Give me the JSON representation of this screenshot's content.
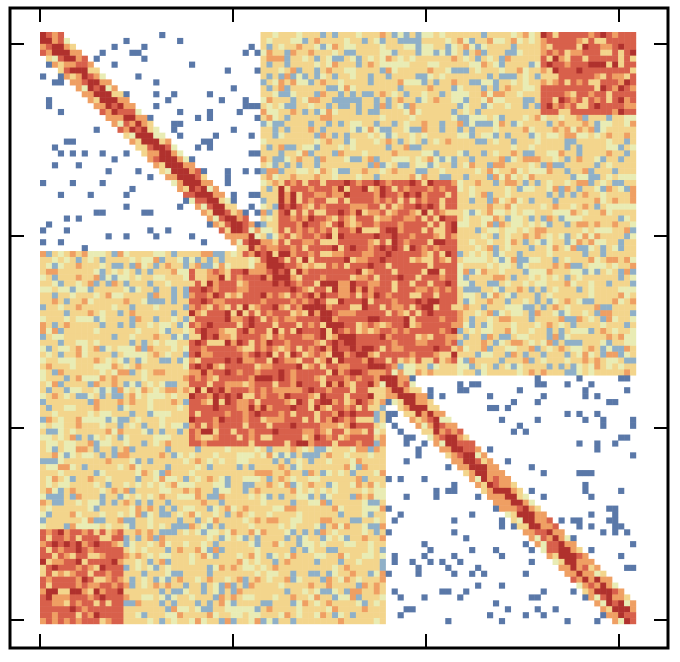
{
  "chart_data": {
    "type": "heatmap",
    "title": "",
    "xlabel": "",
    "ylabel": "",
    "description_of_matrix": null,
    "matrix_size": 100,
    "colorscale": [
      "#ffffff",
      "#5a78a8",
      "#8fb0c8",
      "#e9ecb4",
      "#f3d58c",
      "#ef9f63",
      "#d8604b",
      "#b0312d"
    ],
    "blocks": [
      {
        "name": "top-right-large",
        "rows": [
          0,
          58
        ],
        "cols": [
          37,
          100
        ],
        "level": 4
      },
      {
        "name": "upper-right-hot",
        "rows": [
          0,
          14
        ],
        "cols": [
          84,
          100
        ],
        "level": 6
      },
      {
        "name": "middle-hot",
        "rows": [
          25,
          56
        ],
        "cols": [
          40,
          70
        ],
        "level": 6
      },
      {
        "name": "left-mid-small",
        "rows": [
          58,
          67
        ],
        "cols": [
          20,
          35
        ],
        "level": 3
      },
      {
        "name": "bottom-left",
        "rows": [
          70,
          100
        ],
        "cols": [
          0,
          18
        ],
        "level": 3
      }
    ],
    "x_ticks": [
      "",
      "",
      "",
      ""
    ],
    "y_ticks": [
      "",
      "",
      "",
      ""
    ],
    "grid": false,
    "legend": "none"
  }
}
